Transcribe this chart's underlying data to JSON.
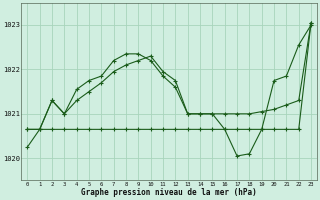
{
  "background_color": "#d0eee0",
  "grid_color": "#a8d4bc",
  "line_color": "#1a5c1a",
  "title": "Graphe pression niveau de la mer (hPa)",
  "ylim": [
    1019.5,
    1023.5
  ],
  "yticks": [
    1020,
    1021,
    1022,
    1023
  ],
  "figsize": [
    3.2,
    2.0
  ],
  "dpi": 100,
  "s1x": [
    0,
    1,
    2,
    3,
    4,
    5,
    6,
    7,
    8,
    9,
    10,
    11,
    12,
    13,
    14,
    15,
    16,
    17,
    18,
    19,
    20,
    21,
    22,
    23
  ],
  "s1y": [
    1020.65,
    1020.65,
    1020.65,
    1020.65,
    1020.65,
    1020.65,
    1020.65,
    1020.65,
    1020.65,
    1020.65,
    1020.65,
    1020.65,
    1020.65,
    1020.65,
    1020.65,
    1020.65,
    1020.65,
    1020.65,
    1020.65,
    1020.65,
    1020.65,
    1020.65,
    1020.65,
    1023.05
  ],
  "s2x": [
    0,
    1,
    2,
    3,
    4,
    5,
    6,
    7,
    8,
    9,
    10,
    11,
    12,
    13,
    14,
    15,
    16,
    17,
    18,
    19,
    20,
    21,
    22,
    23
  ],
  "s2y": [
    1020.25,
    1020.65,
    1021.3,
    1021.0,
    1021.55,
    1021.75,
    1021.85,
    1022.2,
    1022.35,
    1022.35,
    1022.2,
    1021.85,
    1021.6,
    1021.0,
    1021.0,
    1021.0,
    1020.65,
    1020.05,
    1020.1,
    1020.65,
    1021.75,
    1021.85,
    1022.55,
    1023.0
  ],
  "s3x": [
    0,
    1,
    2,
    3,
    4,
    5,
    6,
    7,
    8,
    9,
    10,
    11,
    12,
    13,
    14,
    15,
    16,
    17,
    18,
    19,
    20,
    21,
    22,
    23
  ],
  "s3y": [
    1020.65,
    1020.65,
    1021.3,
    1021.0,
    1021.3,
    1021.5,
    1021.7,
    1021.95,
    1022.1,
    1022.2,
    1022.3,
    1021.95,
    1021.75,
    1021.0,
    1021.0,
    1021.0,
    1021.0,
    1021.0,
    1021.0,
    1021.05,
    1021.1,
    1021.2,
    1021.3,
    1023.05
  ]
}
